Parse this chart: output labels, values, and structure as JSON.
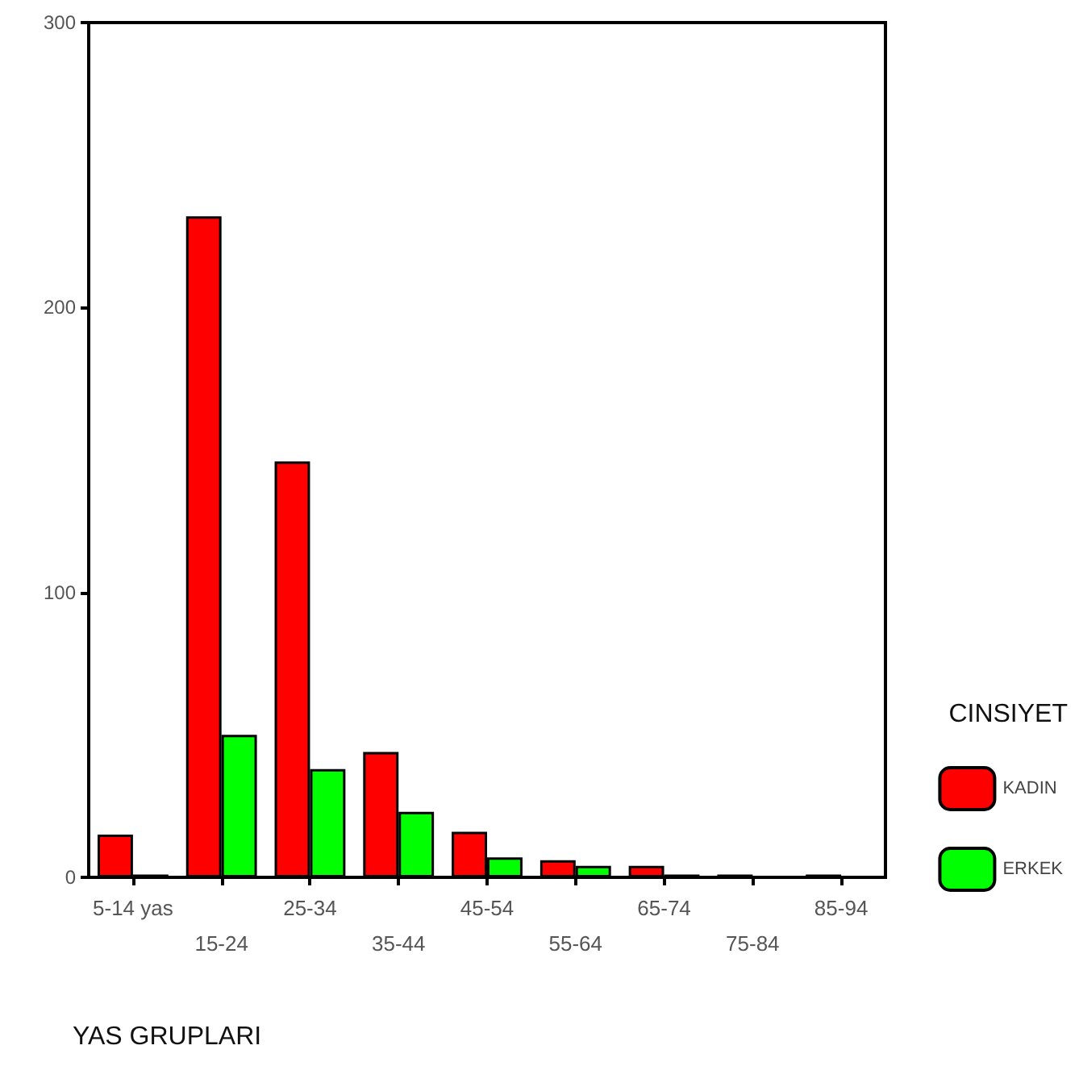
{
  "chart_data": {
    "type": "bar",
    "xlabel": "YAS GRUPLARI",
    "legend_title": "CINSIYET",
    "categories": [
      "5-14 yas",
      "15-24",
      "25-34",
      "35-44",
      "45-54",
      "55-64",
      "65-74",
      "75-84",
      "85-94"
    ],
    "series": [
      {
        "name": "KADIN",
        "color": "#ff0000",
        "values": [
          15,
          232,
          146,
          44,
          16,
          6,
          4,
          1,
          1
        ]
      },
      {
        "name": "ERKEK",
        "color": "#00ff00",
        "values": [
          1,
          50,
          38,
          23,
          7,
          4,
          1,
          0,
          0
        ]
      }
    ],
    "ylim": [
      0,
      300
    ],
    "yticks": [
      0,
      100,
      200,
      300
    ],
    "grid": false,
    "legend": "right"
  }
}
